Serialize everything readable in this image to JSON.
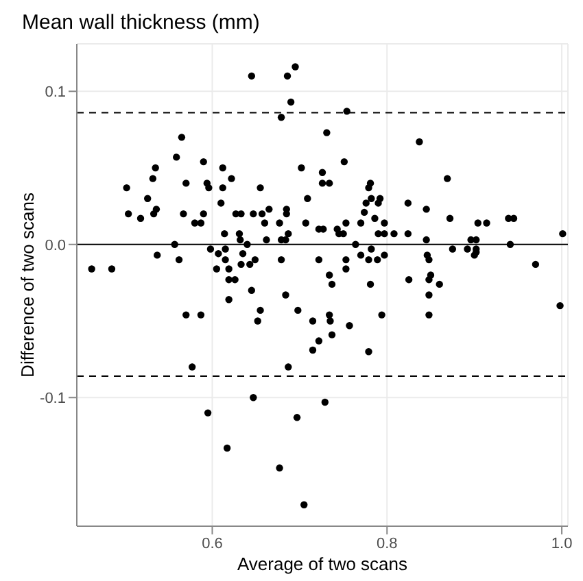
{
  "chart_data": {
    "type": "scatter",
    "title": "Mean wall thickness (mm)",
    "xlabel": "Average of two scans",
    "ylabel": "Difference of two scans",
    "x": [
      0.686,
      0.645,
      0.695,
      0.69,
      0.679,
      0.754,
      0.565,
      0.559,
      0.535,
      0.532,
      0.502,
      0.526,
      0.57,
      0.59,
      0.594,
      0.596,
      0.612,
      0.612,
      0.622,
      0.61,
      0.655,
      0.702,
      0.709,
      0.726,
      0.726,
      0.504,
      0.533,
      0.567,
      0.59,
      0.627,
      0.633,
      0.647,
      0.657,
      0.685,
      0.536,
      0.665,
      0.685,
      0.518,
      0.58,
      0.587,
      0.66,
      0.677,
      0.707,
      0.722,
      0.614,
      0.631,
      0.687,
      0.632,
      0.662,
      0.679,
      0.684,
      0.557,
      0.64,
      0.598,
      0.615,
      0.607,
      0.635,
      0.537,
      0.562,
      0.615,
      0.679,
      0.722,
      0.649,
      0.633,
      0.643,
      0.462,
      0.485,
      0.605,
      0.619,
      0.619,
      0.626,
      0.645,
      0.684,
      0.619,
      0.655,
      0.698,
      0.57,
      0.587,
      0.652,
      0.715,
      0.722,
      0.715,
      0.731,
      0.751,
      0.837,
      0.734,
      0.781,
      0.779,
      0.869,
      0.782,
      0.792,
      0.776,
      0.79,
      0.824,
      0.845,
      0.774,
      0.786,
      0.77,
      0.797,
      0.753,
      0.743,
      0.75,
      0.745,
      0.727,
      0.79,
      0.797,
      0.808,
      0.824,
      0.872,
      0.904,
      0.914,
      0.939,
      0.945,
      1.001,
      0.845,
      0.896,
      0.902,
      0.764,
      0.782,
      0.941,
      0.875,
      0.892,
      0.902,
      0.9,
      0.902,
      0.77,
      0.797,
      0.846,
      0.848,
      0.753,
      0.779,
      0.789,
      0.97,
      0.734,
      0.753,
      0.737,
      0.781,
      0.825,
      0.85,
      0.848,
      0.86,
      0.848,
      0.794,
      0.848,
      0.734,
      0.735,
      0.757,
      0.998,
      0.737,
      0.779,
      0.577,
      0.687,
      0.647,
      0.729,
      0.595,
      0.697,
      0.617,
      0.677,
      0.705
    ],
    "series": [
      {
        "color": "#000000",
        "values": [
          0.11,
          0.11,
          0.116,
          0.093,
          0.083,
          0.087,
          0.07,
          0.057,
          0.05,
          0.043,
          0.037,
          0.03,
          0.04,
          0.054,
          0.04,
          0.037,
          0.05,
          0.037,
          0.043,
          0.027,
          0.037,
          0.05,
          0.03,
          0.047,
          0.04,
          0.02,
          0.02,
          0.02,
          0.02,
          0.02,
          0.02,
          0.02,
          0.02,
          0.02,
          0.023,
          0.023,
          0.023,
          0.017,
          0.014,
          0.014,
          0.014,
          0.014,
          0.014,
          0.01,
          0.007,
          0.007,
          0.007,
          0.003,
          0.003,
          0.003,
          0.003,
          0.0,
          0.0,
          -0.003,
          -0.003,
          -0.006,
          -0.006,
          -0.007,
          -0.01,
          -0.01,
          -0.01,
          -0.01,
          -0.01,
          -0.013,
          -0.013,
          -0.016,
          -0.016,
          -0.016,
          -0.016,
          -0.023,
          -0.023,
          -0.03,
          -0.033,
          -0.036,
          -0.043,
          -0.043,
          -0.046,
          -0.046,
          -0.05,
          -0.05,
          -0.063,
          -0.069,
          0.073,
          0.054,
          0.067,
          0.04,
          0.04,
          0.037,
          0.043,
          0.03,
          0.03,
          0.027,
          0.027,
          0.027,
          0.023,
          0.021,
          0.017,
          0.014,
          0.014,
          0.014,
          0.01,
          0.007,
          0.007,
          0.01,
          0.007,
          0.007,
          0.007,
          0.007,
          0.017,
          0.014,
          0.014,
          0.017,
          0.017,
          0.007,
          0.003,
          0.003,
          0.003,
          0.0,
          -0.003,
          0.0,
          -0.003,
          -0.003,
          -0.003,
          -0.007,
          -0.005,
          -0.007,
          -0.007,
          -0.007,
          -0.01,
          -0.01,
          -0.01,
          -0.01,
          -0.013,
          -0.02,
          -0.016,
          -0.026,
          -0.026,
          -0.023,
          -0.02,
          -0.023,
          -0.026,
          -0.033,
          -0.046,
          -0.046,
          -0.046,
          -0.05,
          -0.053,
          -0.04,
          -0.059,
          -0.07,
          -0.08,
          -0.08,
          -0.1,
          -0.103,
          -0.11,
          -0.113,
          -0.133,
          -0.146,
          -0.17
        ]
      }
    ],
    "xlim": [
      0.445,
      1.007
    ],
    "ylim": [
      -0.184,
      0.131
    ],
    "xticks": [
      0.6,
      0.8,
      {
        "value": 1,
        "label": "1.0"
      }
    ],
    "yticks": [
      -0.1,
      {
        "value": 0,
        "label": "0.0"
      },
      0.1
    ],
    "ref_lines": [
      {
        "axis": "y",
        "value": 0,
        "color": "#000000",
        "line_style": "solid"
      },
      {
        "axis": "y",
        "value": 0.086,
        "color": "#000000",
        "line_style": "dashed"
      },
      {
        "axis": "y",
        "value": -0.086,
        "color": "#000000",
        "line_style": "dashed"
      }
    ],
    "grid": true,
    "marker": "circle"
  }
}
